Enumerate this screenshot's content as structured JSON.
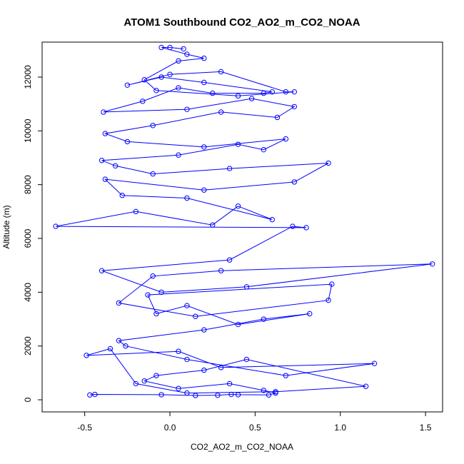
{
  "chart_data": {
    "type": "line",
    "title": "ATOM1 Southbound CO2_AO2_m_CO2_NOAA",
    "xlabel": "CO2_AO2_m_CO2_NOAA",
    "ylabel": "Altitude (m)",
    "xlim": [
      -0.75,
      1.6
    ],
    "ylim": [
      -450,
      13300
    ],
    "xticks": [
      -0.5,
      0.0,
      0.5,
      1.0,
      1.5
    ],
    "xtick_labels": [
      "-0.5",
      "0.0",
      "0.5",
      "1.0",
      "1.5"
    ],
    "yticks": [
      0,
      2000,
      4000,
      6000,
      8000,
      10000,
      12000
    ],
    "ytick_labels": [
      "0",
      "2000",
      "4000",
      "6000",
      "8000",
      "10000",
      "12000"
    ],
    "grid": false,
    "colors": {
      "series": "#0000ff",
      "axes": "#000000"
    },
    "series": [
      {
        "marker": "open-circle",
        "x": [
          -0.47,
          -0.44,
          -0.05,
          0.15,
          0.28,
          0.36,
          0.4,
          0.58,
          0.62,
          0.55,
          0.35,
          0.05,
          -0.15,
          -0.08,
          0.2,
          0.45,
          1.15,
          0.62,
          0.1,
          -0.2,
          -0.35,
          -0.49,
          0.05,
          0.3,
          1.2,
          0.68,
          0.1,
          -0.26,
          -0.3,
          0.2,
          0.55,
          0.82,
          0.4,
          0.1,
          -0.08,
          -0.13,
          0.95,
          0.93,
          0.15,
          -0.3,
          -0.1,
          0.3,
          1.54,
          0.45,
          -0.05,
          -0.4,
          0.35,
          0.72,
          0.8,
          -0.67,
          -0.2,
          0.25,
          0.4,
          0.6,
          0.1,
          -0.28,
          -0.38,
          0.2,
          0.73,
          0.93,
          0.35,
          -0.1,
          -0.32,
          -0.4,
          0.05,
          0.4,
          0.55,
          0.68,
          0.2,
          -0.25,
          -0.38,
          -0.1,
          0.3,
          0.63,
          0.73,
          0.48,
          0.1,
          -0.39,
          -0.16,
          0.05,
          0.25,
          0.55,
          0.6,
          0.2,
          -0.05,
          -0.25,
          0.0,
          0.3,
          0.68,
          0.73,
          0.4,
          -0.08,
          -0.15,
          0.05,
          0.2,
          0.1,
          -0.05,
          0.0,
          0.08
        ],
        "y": [
          180,
          200,
          190,
          160,
          170,
          200,
          190,
          180,
          250,
          350,
          600,
          420,
          700,
          900,
          1100,
          1500,
          500,
          300,
          250,
          600,
          1900,
          1650,
          1800,
          1200,
          1350,
          900,
          1500,
          2000,
          2200,
          2600,
          3000,
          3200,
          2800,
          3500,
          3200,
          3900,
          4300,
          3700,
          3100,
          3600,
          4600,
          4800,
          5050,
          4200,
          4000,
          4800,
          5200,
          6450,
          6400,
          6450,
          7000,
          6500,
          7200,
          6700,
          7500,
          7600,
          8200,
          7800,
          8100,
          8800,
          8600,
          8400,
          8700,
          8900,
          9100,
          9500,
          9300,
          9700,
          9400,
          9600,
          9900,
          10200,
          10700,
          10500,
          10900,
          11200,
          10800,
          10700,
          11100,
          11600,
          11400,
          11400,
          11450,
          11800,
          12000,
          11700,
          12100,
          12200,
          11450,
          11450,
          11300,
          11500,
          11900,
          12600,
          12700,
          12850,
          13100,
          13100,
          13050
        ]
      }
    ]
  }
}
